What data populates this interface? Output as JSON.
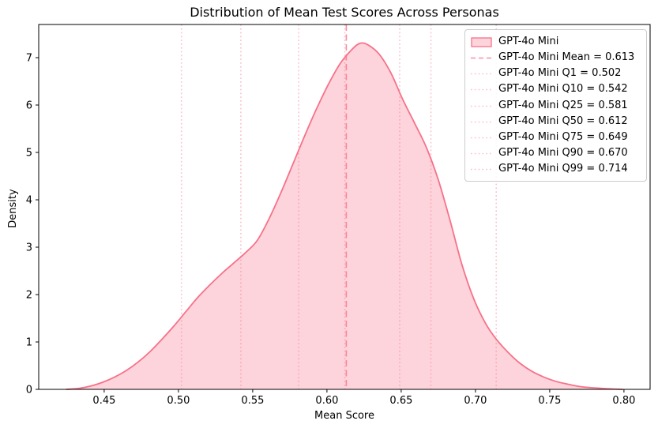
{
  "chart_data": {
    "type": "area",
    "subtype": "kde-density",
    "title": "Distribution of Mean Test Scores Across Personas",
    "xlabel": "Mean Score",
    "ylabel": "Density",
    "xlim": [
      0.4059,
      0.8176
    ],
    "ylim": [
      0,
      7.7
    ],
    "grid": false,
    "x_ticks": [
      0.45,
      0.5,
      0.55,
      0.6,
      0.65,
      0.7,
      0.75,
      0.8
    ],
    "x_tick_labels": [
      "0.45",
      "0.50",
      "0.55",
      "0.60",
      "0.65",
      "0.70",
      "0.75",
      "0.80"
    ],
    "y_ticks": [
      0,
      1,
      2,
      3,
      4,
      5,
      6,
      7
    ],
    "y_tick_labels": [
      "0",
      "1",
      "2",
      "3",
      "4",
      "5",
      "6",
      "7"
    ],
    "colors": {
      "accent": "#f77189",
      "fill": "rgba(247,113,137,0.3)",
      "mean_line": "rgba(247,113,137,0.8)",
      "quantile_line": "rgba(247,113,137,0.42)",
      "legend_border": "#cccccc",
      "text": "#000000"
    },
    "series": [
      {
        "name": "GPT-4o Mini",
        "x": [
          0.4246,
          0.433,
          0.441,
          0.449,
          0.457,
          0.465,
          0.473,
          0.481,
          0.489,
          0.497,
          0.505,
          0.513,
          0.521,
          0.529,
          0.537,
          0.545,
          0.553,
          0.561,
          0.569,
          0.577,
          0.585,
          0.593,
          0.601,
          0.609,
          0.617,
          0.622,
          0.627,
          0.635,
          0.643,
          0.651,
          0.659,
          0.667,
          0.675,
          0.683,
          0.691,
          0.699,
          0.707,
          0.714,
          0.722,
          0.73,
          0.738,
          0.746,
          0.754,
          0.762,
          0.77,
          0.778,
          0.786,
          0.794,
          0.799
        ],
        "density": [
          0.0,
          0.02,
          0.07,
          0.15,
          0.26,
          0.4,
          0.58,
          0.8,
          1.06,
          1.34,
          1.64,
          1.94,
          2.2,
          2.44,
          2.66,
          2.88,
          3.14,
          3.6,
          4.15,
          4.75,
          5.35,
          5.92,
          6.44,
          6.88,
          7.18,
          7.3,
          7.28,
          7.08,
          6.68,
          6.12,
          5.62,
          5.1,
          4.42,
          3.55,
          2.62,
          1.9,
          1.38,
          1.06,
          0.78,
          0.55,
          0.38,
          0.26,
          0.17,
          0.11,
          0.06,
          0.035,
          0.018,
          0.007,
          0.0
        ]
      }
    ],
    "stat_lines": [
      {
        "stat": "Mean",
        "value": 0.613,
        "style": "dashed"
      },
      {
        "stat": "Q1",
        "value": 0.502,
        "style": "dotted"
      },
      {
        "stat": "Q10",
        "value": 0.542,
        "style": "dotted"
      },
      {
        "stat": "Q25",
        "value": 0.581,
        "style": "dotted"
      },
      {
        "stat": "Q50",
        "value": 0.612,
        "style": "dotted"
      },
      {
        "stat": "Q75",
        "value": 0.649,
        "style": "dotted"
      },
      {
        "stat": "Q90",
        "value": 0.67,
        "style": "dotted"
      },
      {
        "stat": "Q99",
        "value": 0.714,
        "style": "dotted"
      }
    ],
    "legend": {
      "position": "upper right",
      "entries": [
        {
          "label": "GPT-4o Mini",
          "swatch": "patch"
        },
        {
          "label": "GPT-4o Mini Mean = 0.613",
          "swatch": "dashed-line"
        },
        {
          "label": "GPT-4o Mini Q1 = 0.502",
          "swatch": "dotted-line"
        },
        {
          "label": "GPT-4o Mini Q10 = 0.542",
          "swatch": "dotted-line"
        },
        {
          "label": "GPT-4o Mini Q25 = 0.581",
          "swatch": "dotted-line"
        },
        {
          "label": "GPT-4o Mini Q50 = 0.612",
          "swatch": "dotted-line"
        },
        {
          "label": "GPT-4o Mini Q75 = 0.649",
          "swatch": "dotted-line"
        },
        {
          "label": "GPT-4o Mini Q90 = 0.670",
          "swatch": "dotted-line"
        },
        {
          "label": "GPT-4o Mini Q99 = 0.714",
          "swatch": "dotted-line"
        }
      ]
    }
  }
}
